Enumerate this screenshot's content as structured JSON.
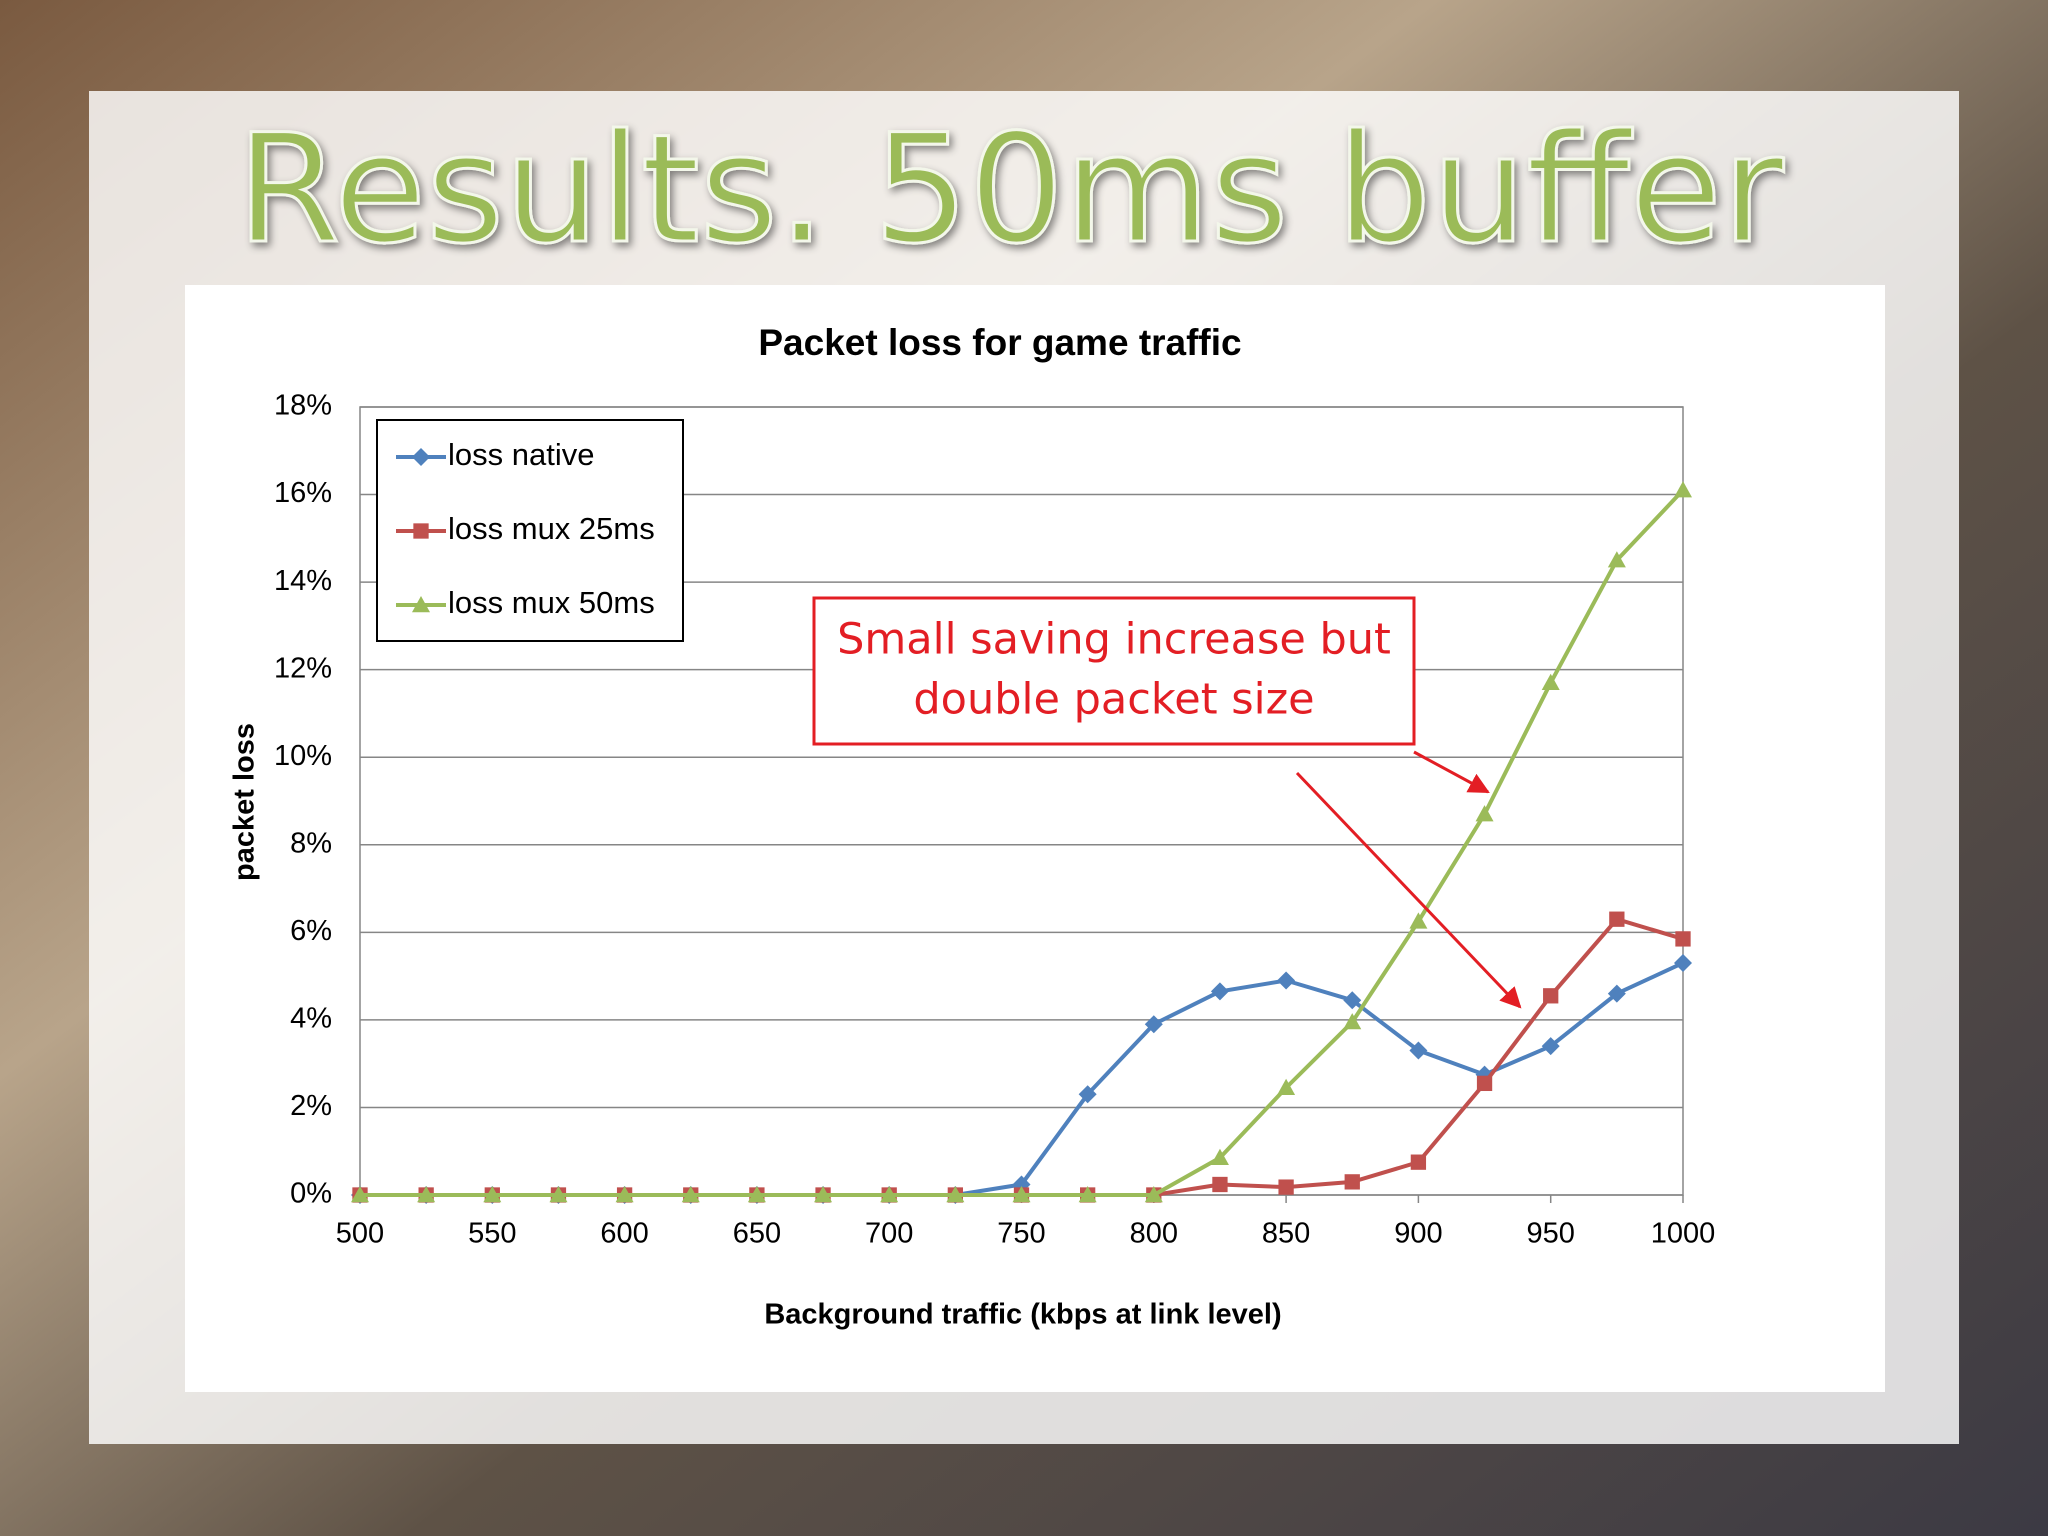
{
  "title": "Results. 50ms buffer",
  "chart_data": {
    "type": "line",
    "title": "Packet loss for game traffic",
    "x_label": "Background traffic (kbps at link level)",
    "y_label": "packet loss",
    "x": [
      500,
      525,
      550,
      575,
      600,
      625,
      650,
      675,
      700,
      725,
      750,
      775,
      800,
      825,
      850,
      875,
      900,
      925,
      950,
      975,
      1000
    ],
    "series": [
      {
        "name": "loss native",
        "color": "#4f81bd",
        "marker": "diamond",
        "values": [
          0,
          0,
          0,
          0,
          0,
          0,
          0,
          0,
          0,
          0,
          0.24,
          2.3,
          3.9,
          4.65,
          4.9,
          4.45,
          3.3,
          2.75,
          3.4,
          4.6,
          5.3
        ]
      },
      {
        "name": "loss mux 25ms",
        "color": "#c0504d",
        "marker": "square",
        "values": [
          0,
          0,
          0,
          0,
          0,
          0,
          0,
          0,
          0,
          0,
          0,
          0,
          0,
          0.24,
          0.18,
          0.3,
          0.75,
          2.55,
          4.55,
          6.3,
          5.85
        ]
      },
      {
        "name": "loss mux 50ms",
        "color": "#9bbb59",
        "marker": "triangle",
        "values": [
          0,
          0,
          0,
          0,
          0,
          0,
          0,
          0,
          0,
          0,
          0,
          0,
          0,
          0.85,
          2.45,
          3.95,
          6.25,
          8.7,
          11.7,
          14.5,
          16.1
        ]
      }
    ],
    "xlim": [
      500,
      1000
    ],
    "xticks": [
      500,
      550,
      600,
      650,
      700,
      750,
      800,
      850,
      900,
      950,
      1000
    ],
    "ylim": [
      0,
      18
    ],
    "yticks": [
      {
        "value": 0,
        "label": "0%"
      },
      {
        "value": 2,
        "label": "2%"
      },
      {
        "value": 4,
        "label": "4%"
      },
      {
        "value": 6,
        "label": "6%"
      },
      {
        "value": 8,
        "label": "8%"
      },
      {
        "value": 10,
        "label": "10%"
      },
      {
        "value": 12,
        "label": "12%"
      },
      {
        "value": 14,
        "label": "14%"
      },
      {
        "value": 16,
        "label": "16%"
      },
      {
        "value": 18,
        "label": "18%"
      }
    ],
    "grid": true,
    "legend": "top-left",
    "annotation": [
      "Small saving increase but",
      "double packet size"
    ]
  }
}
